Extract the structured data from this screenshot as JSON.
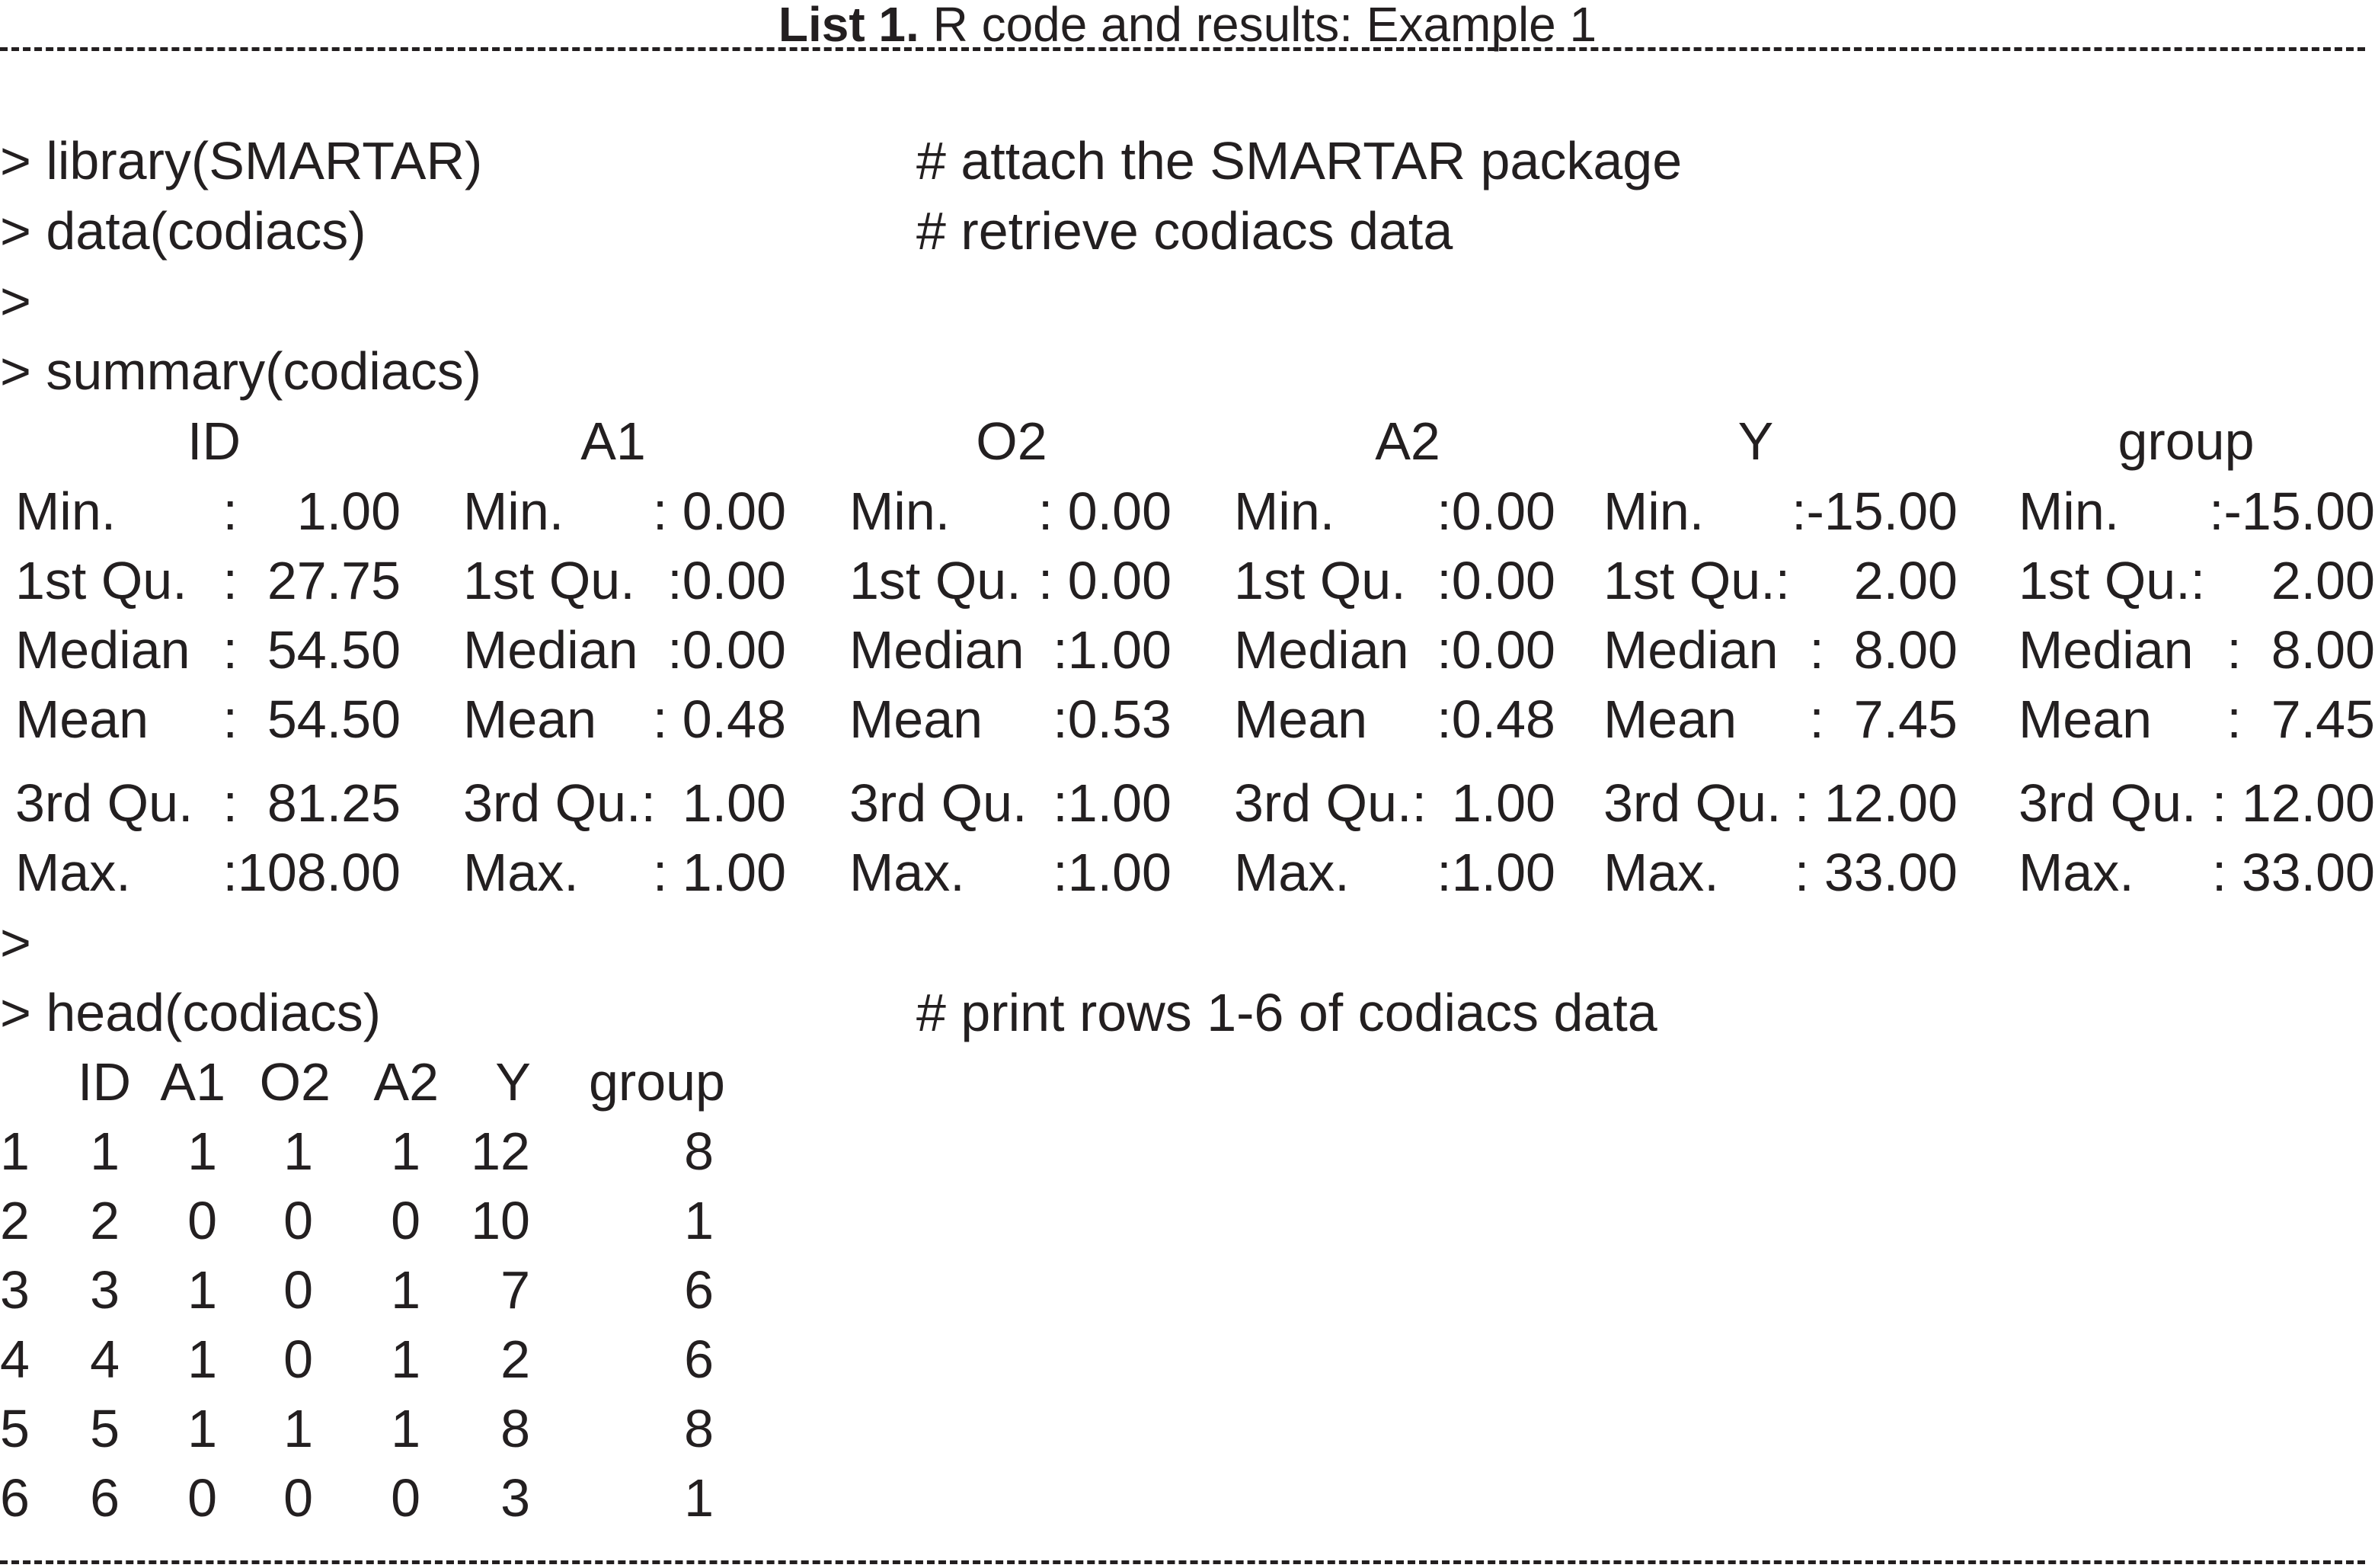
{
  "title": {
    "bold": "List 1.",
    "rest": " R code and results: Example 1"
  },
  "code_lines": {
    "library": {
      "code": "> library(SMARTAR)",
      "comment": "# attach the SMARTAR package"
    },
    "data": {
      "code": "> data(codiacs)",
      "comment": "# retrieve codiacs data"
    },
    "blank1": {
      "code": ">"
    },
    "summary": {
      "code": "> summary(codiacs)"
    },
    "blank2": {
      "code": ">"
    },
    "head": {
      "code": "> head(codiacs)",
      "comment": "# print rows 1-6 of codiacs data"
    }
  },
  "summary_table": {
    "headers": [
      "ID",
      "A1",
      "O2",
      "A2",
      "Y",
      "group"
    ],
    "rows": [
      [
        {
          "label": "Min.",
          "value": ":    1.00"
        },
        {
          "label": "Min.",
          "value": ": 0.00"
        },
        {
          "label": "Min.",
          "value": ": 0.00"
        },
        {
          "label": "Min.",
          "value": ":0.00"
        },
        {
          "label": "Min.",
          "value": ":-15.00"
        },
        {
          "label": "Min.",
          "value": ":-15.00"
        }
      ],
      [
        {
          "label": "1st Qu.",
          "value": ":  27.75"
        },
        {
          "label": "1st Qu.",
          "value": ":0.00"
        },
        {
          "label": "1st Qu.",
          "value": ": 0.00"
        },
        {
          "label": "1st Qu.",
          "value": ":0.00"
        },
        {
          "label": "1st Qu.:",
          "value": "2.00"
        },
        {
          "label": "1st Qu.:",
          "value": "2.00"
        }
      ],
      [
        {
          "label": "Median",
          "value": ":  54.50"
        },
        {
          "label": "Median",
          "value": ":0.00"
        },
        {
          "label": "Median",
          "value": ":1.00"
        },
        {
          "label": "Median",
          "value": ":0.00"
        },
        {
          "label": "Median",
          "value": ":  8.00"
        },
        {
          "label": "Median",
          "value": ":  8.00"
        }
      ],
      [
        {
          "label": "Mean",
          "value": ":  54.50"
        },
        {
          "label": "Mean",
          "value": ": 0.48"
        },
        {
          "label": "Mean",
          "value": ":0.53"
        },
        {
          "label": "Mean",
          "value": ":0.48"
        },
        {
          "label": "Mean",
          "value": ":  7.45"
        },
        {
          "label": "Mean",
          "value": ":  7.45"
        }
      ],
      [
        {
          "label": "3rd Qu.",
          "value": ":  81.25"
        },
        {
          "label": "3rd Qu.:",
          "value": "1.00"
        },
        {
          "label": "3rd Qu.",
          "value": ":1.00"
        },
        {
          "label": "3rd Qu.:",
          "value": "1.00"
        },
        {
          "label": "3rd Qu.",
          "value": ": 12.00"
        },
        {
          "label": "3rd Qu.",
          "value": ": 12.00"
        }
      ],
      [
        {
          "label": "Max.",
          "value": ":108.00"
        },
        {
          "label": "Max.",
          "value": ": 1.00"
        },
        {
          "label": "Max.",
          "value": ":1.00"
        },
        {
          "label": "Max.",
          "value": ":1.00"
        },
        {
          "label": "Max.",
          "value": ": 33.00"
        },
        {
          "label": "Max.",
          "value": ": 33.00"
        }
      ]
    ]
  },
  "head_table": {
    "headers": [
      "ID",
      "A1",
      "O2",
      "A2",
      "Y",
      "group"
    ],
    "rows": [
      {
        "row": "1",
        "values": [
          "1",
          "1",
          "1",
          "1",
          "12",
          "8"
        ]
      },
      {
        "row": "2",
        "values": [
          "2",
          "0",
          "0",
          "0",
          "10",
          "1"
        ]
      },
      {
        "row": "3",
        "values": [
          "3",
          "1",
          "0",
          "1",
          "7",
          "6"
        ]
      },
      {
        "row": "4",
        "values": [
          "4",
          "1",
          "0",
          "1",
          "2",
          "6"
        ]
      },
      {
        "row": "5",
        "values": [
          "5",
          "1",
          "1",
          "1",
          "8",
          "8"
        ]
      },
      {
        "row": "6",
        "values": [
          "6",
          "0",
          "0",
          "0",
          "3",
          "1"
        ]
      }
    ]
  }
}
